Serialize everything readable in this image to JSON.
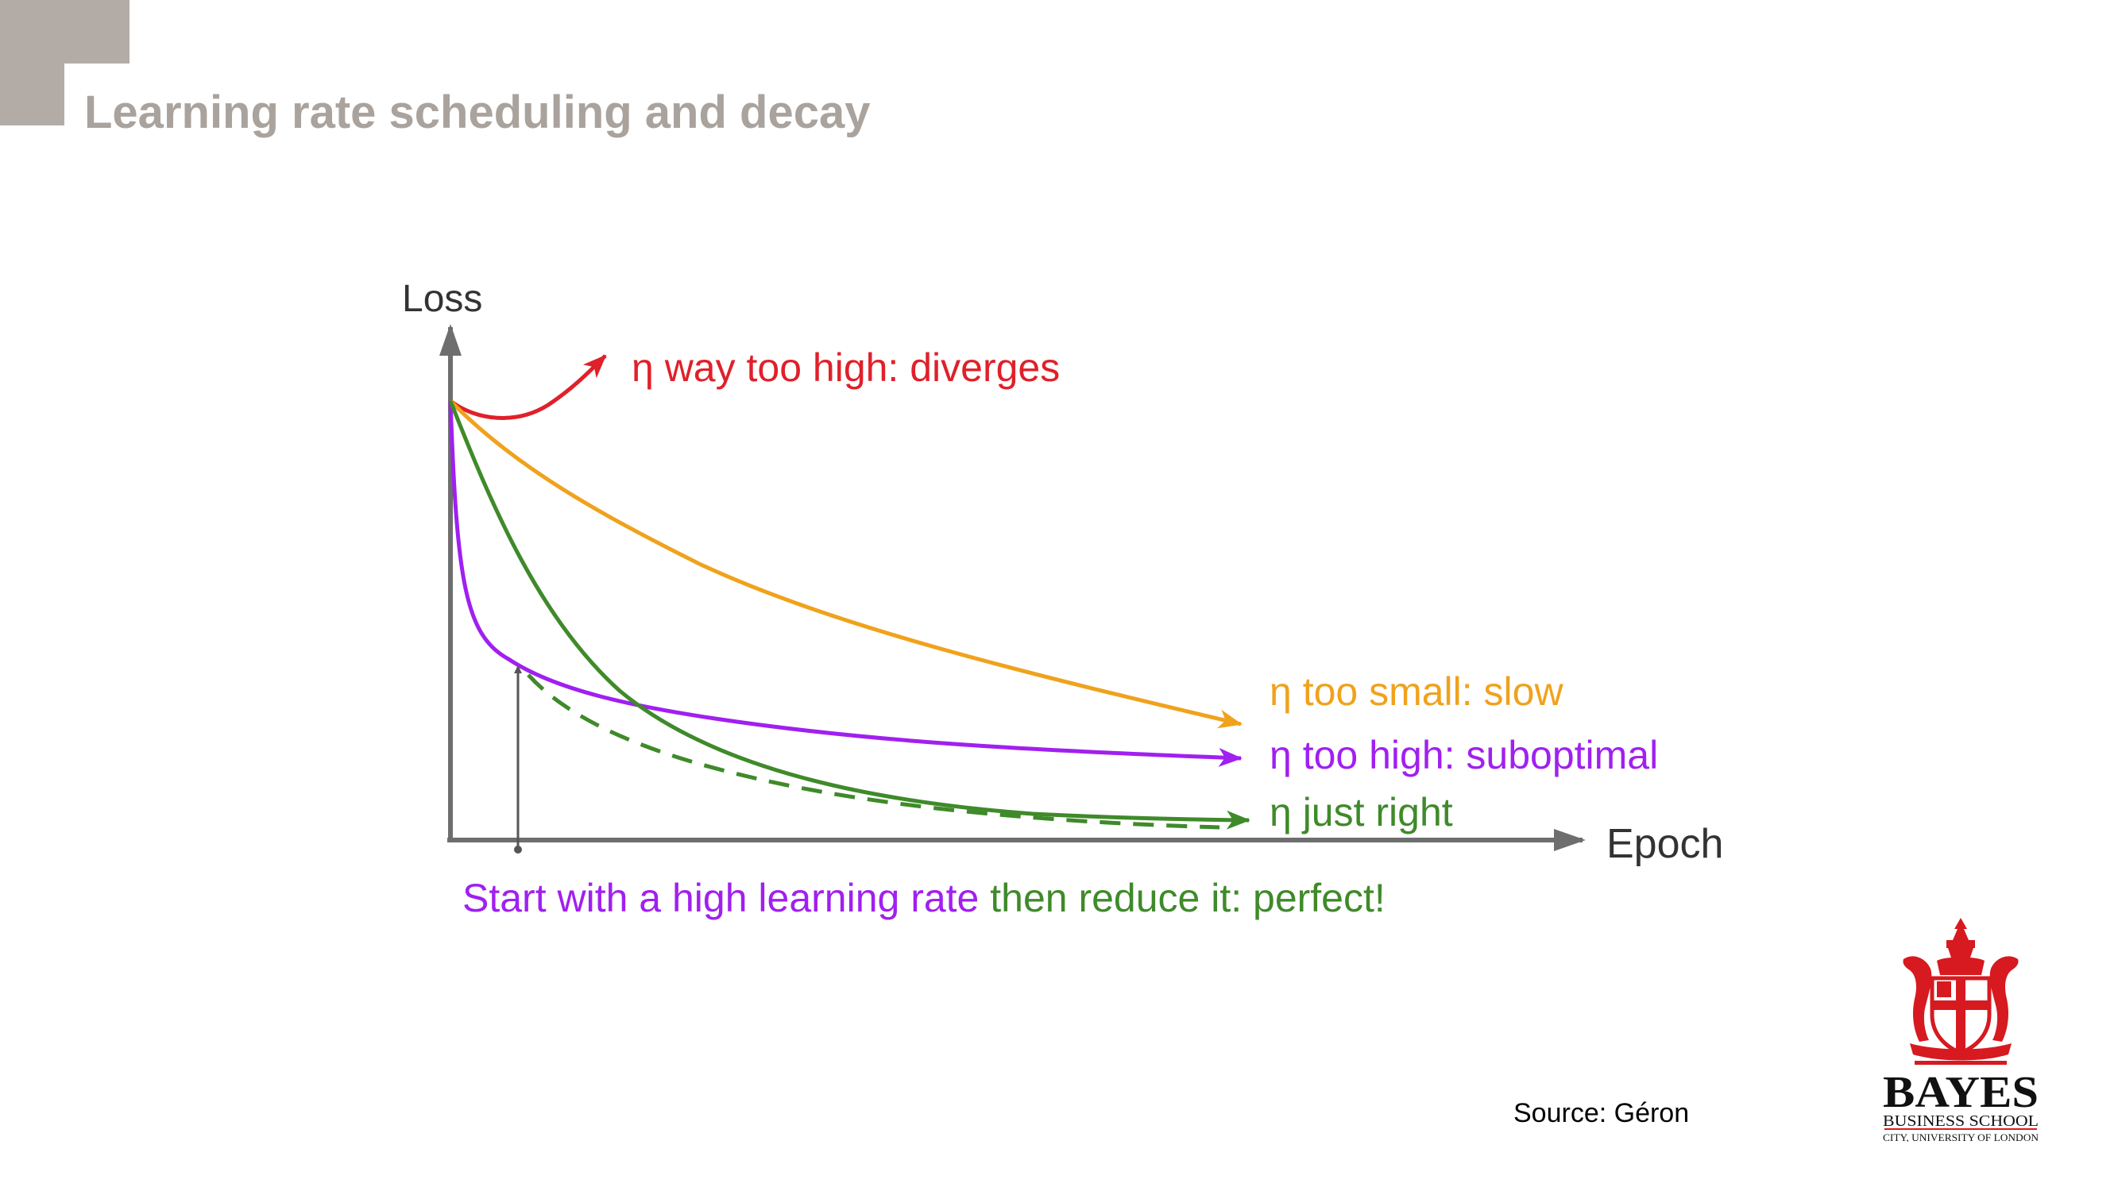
{
  "slide": {
    "title": "Learning rate scheduling and decay",
    "source": "Source: Géron"
  },
  "figure": {
    "y_axis_label": "Loss",
    "x_axis_label": "Epoch",
    "curves": [
      {
        "id": "diverges",
        "label": "η way too high: diverges",
        "color": "#e0202a"
      },
      {
        "id": "slow",
        "label": "η too small: slow",
        "color": "#f0a21c"
      },
      {
        "id": "suboptimal",
        "label": "η too high: suboptimal",
        "color": "#a020f0"
      },
      {
        "id": "just-right",
        "label": "η just right",
        "color": "#3f8a2a"
      }
    ],
    "caption": {
      "part1": "Start with a high learning rate",
      "part2": " then reduce it: perfect!",
      "part1_color": "#a020f0",
      "part2_color": "#3f8a2a"
    }
  },
  "logo": {
    "name": "BAYES",
    "line2": "BUSINESS SCHOOL",
    "line3": "CITY, UNIVERSITY OF LONDON",
    "color": "#d71920"
  }
}
